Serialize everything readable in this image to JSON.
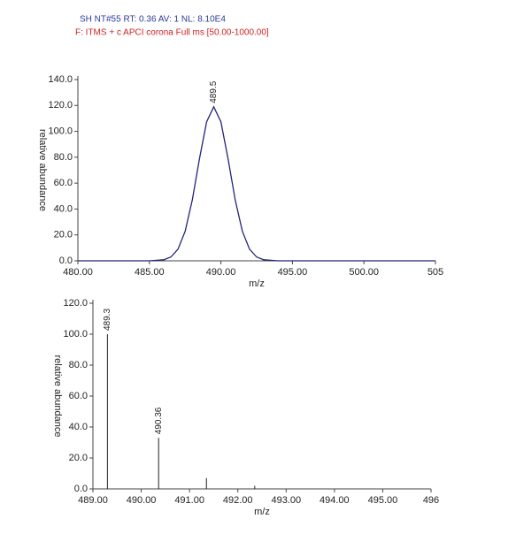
{
  "header": {
    "line1": "SH NT#55  RT: 0.36  AV: 1  NL: 8.10E4",
    "line2": "F: ITMS + c APCI corona Full ms [50.00-1000.00]"
  },
  "chart_data": [
    {
      "type": "line",
      "x_label": "m/z",
      "y_label": "relative abundance",
      "color": "#23237a",
      "x": [
        480,
        485,
        486,
        486.5,
        487,
        487.5,
        488,
        488.5,
        489,
        489.5,
        490,
        490.5,
        491,
        491.5,
        492,
        492.5,
        493,
        494,
        505
      ],
      "values": [
        0,
        0,
        0.8,
        2.9,
        9.0,
        22.8,
        47.0,
        78.8,
        107.3,
        119,
        107.3,
        78.8,
        47.0,
        22.8,
        9.0,
        2.9,
        0.8,
        0,
        0
      ],
      "point_labels": [
        null,
        null,
        null,
        null,
        null,
        null,
        null,
        null,
        null,
        "489.5",
        null,
        null,
        null,
        null,
        null,
        null,
        null,
        null,
        null
      ],
      "xlim": [
        480,
        505
      ],
      "xticks": [
        {
          "value": 480,
          "label": "480.00"
        },
        {
          "value": 485,
          "label": "485.00"
        },
        {
          "value": 490,
          "label": "490.00"
        },
        {
          "value": 495,
          "label": "495.00"
        },
        {
          "value": 500,
          "label": "500.00"
        },
        505
      ],
      "ylim": [
        0,
        140
      ],
      "yticks": [
        {
          "value": 0,
          "label": "0.0"
        },
        {
          "value": 20,
          "label": "20.0"
        },
        {
          "value": 40,
          "label": "40.0"
        },
        {
          "value": 60,
          "label": "60.0"
        },
        {
          "value": 80,
          "label": "80.0"
        },
        {
          "value": 100,
          "label": "100.0"
        },
        {
          "value": 120,
          "label": "120.0"
        },
        {
          "value": 140,
          "label": "140.0"
        }
      ]
    },
    {
      "type": "stick",
      "x_label": "m/z",
      "y_label": "relative abundance",
      "color": "#222222",
      "x": [
        489.3,
        490.36,
        491.35,
        492.35
      ],
      "values": [
        100,
        33,
        7,
        2
      ],
      "point_labels": [
        "489.3",
        "490.36",
        null,
        null
      ],
      "xlim": [
        489,
        496
      ],
      "xticks": [
        {
          "value": 489,
          "label": "489.00"
        },
        {
          "value": 490,
          "label": "490.00"
        },
        {
          "value": 491,
          "label": "491.00"
        },
        {
          "value": 492,
          "label": "492.00"
        },
        {
          "value": 493,
          "label": "493.00"
        },
        {
          "value": 494,
          "label": "494.00"
        },
        {
          "value": 495,
          "label": "495.00"
        },
        496
      ],
      "ylim": [
        0,
        120
      ],
      "yticks": [
        {
          "value": 0,
          "label": "0.0"
        },
        {
          "value": 20,
          "label": "20.0"
        },
        {
          "value": 40,
          "label": "40.0"
        },
        {
          "value": 60,
          "label": "60.0"
        },
        {
          "value": 80,
          "label": "80.0"
        },
        {
          "value": 100,
          "label": "100.0"
        },
        {
          "value": 120,
          "label": "120.0"
        }
      ]
    }
  ]
}
